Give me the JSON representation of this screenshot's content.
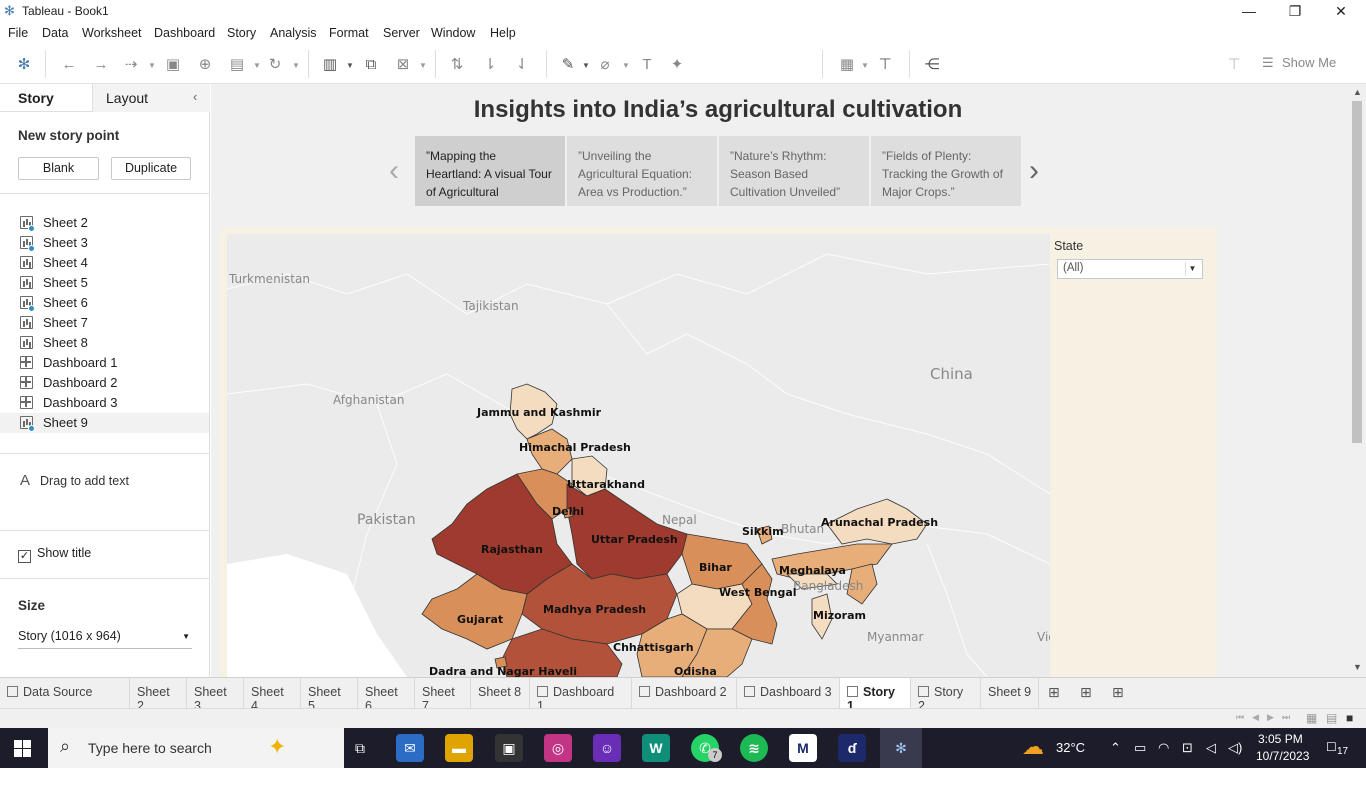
{
  "window": {
    "title": "Tableau - Book1"
  },
  "menu": [
    "File",
    "Data",
    "Worksheet",
    "Dashboard",
    "Story",
    "Analysis",
    "Format",
    "Server",
    "Window",
    "Help"
  ],
  "toolbar": {
    "show_me": "Show Me"
  },
  "sidebar": {
    "tab_story": "Story",
    "tab_layout": "Layout",
    "new_story_point": "New story point",
    "blank_button": "Blank",
    "duplicate_button": "Duplicate",
    "sheets": [
      {
        "label": "Sheet 2",
        "type": "sheet",
        "used": true
      },
      {
        "label": "Sheet 3",
        "type": "sheet",
        "used": true
      },
      {
        "label": "Sheet 4",
        "type": "sheet",
        "used": false
      },
      {
        "label": "Sheet 5",
        "type": "sheet",
        "used": false
      },
      {
        "label": "Sheet 6",
        "type": "sheet",
        "used": true
      },
      {
        "label": "Sheet 7",
        "type": "sheet",
        "used": false
      },
      {
        "label": "Sheet 8",
        "type": "sheet",
        "used": false
      },
      {
        "label": "Dashboard 1",
        "type": "dashboard",
        "used": false
      },
      {
        "label": "Dashboard 2",
        "type": "dashboard",
        "used": false
      },
      {
        "label": "Dashboard 3",
        "type": "dashboard",
        "used": false
      },
      {
        "label": "Sheet 9",
        "type": "sheet",
        "used": true
      }
    ],
    "drag_text": "Drag to add text",
    "show_title": "Show title",
    "size_label": "Size",
    "size_value": "Story (1016 x 964)"
  },
  "story": {
    "title": "Insights into India’s agricultural cultivation",
    "points": [
      "”Mapping the Heartland: A visual Tour of Agricultural",
      "”Unveiling the Agricultural Equation: Area vs Production.”",
      "”Nature’s Rhythm: Season Based Cultivation Unveiled”",
      "”Fields of Plenty: Tracking the Growth of Major Crops.”"
    ]
  },
  "filter": {
    "label": "State",
    "value": "(All)"
  },
  "map": {
    "country_labels": [
      "Turkmenistan",
      "Tajikistan",
      "Afghanistan",
      "Pakistan",
      "China",
      "Nepal",
      "Bhutan",
      "Bangladesh",
      "Myanmar",
      "Viet"
    ],
    "state_labels": [
      "Jammu and Kashmir",
      "Himachal Pradesh",
      "Uttarakhand",
      "Delhi",
      "Rajasthan",
      "Uttar Pradesh",
      "Sikkim",
      "Arunachal Pradesh",
      "Bihar",
      "Meghalaya",
      "West Bengal",
      "Gujarat",
      "Madhya Pradesh",
      "Mizoram",
      "Chhattisgarh",
      "Dadra and Nagar Haveli",
      "Odisha"
    ],
    "colors": {
      "darkest": "#9e3a2e",
      "dark": "#b2523a",
      "mid": "#d98f5a",
      "light": "#e8ae7a",
      "lightest": "#f3dcc0"
    }
  },
  "sheet_tabs": [
    {
      "label": "Data Source",
      "type": "datasource"
    },
    {
      "label": "Sheet 2",
      "type": "sheet"
    },
    {
      "label": "Sheet 3",
      "type": "sheet"
    },
    {
      "label": "Sheet 4",
      "type": "sheet"
    },
    {
      "label": "Sheet 5",
      "type": "sheet"
    },
    {
      "label": "Sheet 6",
      "type": "sheet"
    },
    {
      "label": "Sheet 7",
      "type": "sheet"
    },
    {
      "label": "Sheet 8",
      "type": "sheet"
    },
    {
      "label": "Dashboard 1",
      "type": "dashboard"
    },
    {
      "label": "Dashboard 2",
      "type": "dashboard"
    },
    {
      "label": "Dashboard 3",
      "type": "dashboard"
    },
    {
      "label": "Story 1",
      "type": "story"
    },
    {
      "label": "Story 2",
      "type": "story"
    },
    {
      "label": "Sheet 9",
      "type": "sheet"
    }
  ],
  "taskbar": {
    "search_placeholder": "Type here to search",
    "weather": "32°C",
    "time": "3:05 PM",
    "date": "10/7/2023",
    "notifications": "17",
    "whatsapp_badge": "7"
  }
}
